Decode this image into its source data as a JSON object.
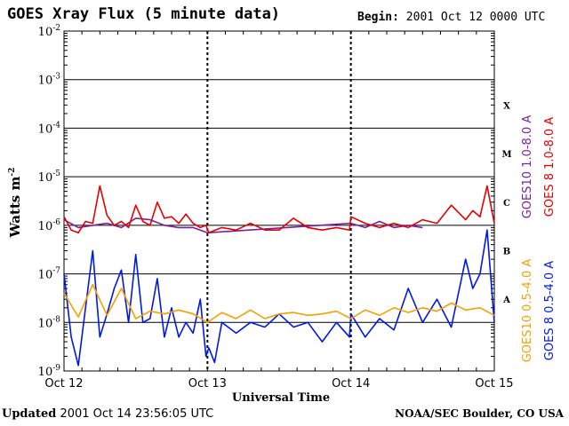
{
  "header": {
    "title": "GOES Xray Flux (5 minute data)",
    "begin_label": "Begin:",
    "begin_value": "2001 Oct 12 0000 UTC"
  },
  "footer": {
    "updated_label": "Updated",
    "updated_value": "2001 Oct 14 23:56:05 UTC",
    "credit": "NOAA/SEC Boulder, CO USA"
  },
  "colors": {
    "goes10_long": "#7a1fa0",
    "goes8_long": "#e60000",
    "goes10_short": "#f5a000",
    "goes8_short": "#0018e6"
  },
  "chart_data": {
    "type": "line",
    "title": "GOES Xray Flux (5 minute data)",
    "xlabel": "Universal Time",
    "ylabel": "Watts m-2",
    "x_ticks": [
      "Oct 12",
      "Oct 13",
      "Oct 14",
      "Oct 15"
    ],
    "xlim": [
      0,
      3
    ],
    "y_scale": "log",
    "ylim": [
      1e-09,
      0.01
    ],
    "y_ticks": [
      {
        "base": "10",
        "exp": "-2",
        "value": 0.01
      },
      {
        "base": "10",
        "exp": "-3",
        "value": 0.001
      },
      {
        "base": "10",
        "exp": "-4",
        "value": 0.0001
      },
      {
        "base": "10",
        "exp": "-5",
        "value": 1e-05
      },
      {
        "base": "10",
        "exp": "-6",
        "value": 1e-06
      },
      {
        "base": "10",
        "exp": "-7",
        "value": 1e-07
      },
      {
        "base": "10",
        "exp": "-8",
        "value": 1e-08
      },
      {
        "base": "10",
        "exp": "-9",
        "value": 1e-09
      }
    ],
    "flare_classes": [
      {
        "label": "X",
        "value": 0.0003
      },
      {
        "label": "M",
        "value": 3e-05
      },
      {
        "label": "C",
        "value": 3e-06
      },
      {
        "label": "B",
        "value": 3e-07
      },
      {
        "label": "A",
        "value": 3e-08
      }
    ],
    "grid": "horizontal lines at each decade",
    "series": [
      {
        "name": "GOES10 1.0-8.0 A",
        "color": "#7a1fa0",
        "x": [
          0,
          0.1,
          0.2,
          0.3,
          0.4,
          0.5,
          0.6,
          0.7,
          0.8,
          0.9,
          1.0,
          2.0,
          2.1,
          2.2,
          2.3,
          2.4,
          2.5
        ],
        "y": [
          1.3e-06,
          9e-07,
          1e-06,
          1.1e-06,
          9e-07,
          1.4e-06,
          1.3e-06,
          1e-06,
          9e-07,
          9e-07,
          7e-07,
          1.1e-06,
          9e-07,
          1.2e-06,
          9e-07,
          1e-06,
          9e-07
        ]
      },
      {
        "name": "GOES 8 1.0-8.0 A",
        "color": "#e60000",
        "x": [
          0,
          0.05,
          0.1,
          0.15,
          0.2,
          0.25,
          0.3,
          0.35,
          0.4,
          0.45,
          0.5,
          0.55,
          0.6,
          0.65,
          0.7,
          0.75,
          0.8,
          0.85,
          0.9,
          0.95,
          0.99,
          1.01,
          1.1,
          1.2,
          1.3,
          1.4,
          1.5,
          1.6,
          1.7,
          1.8,
          1.9,
          1.99,
          2.0,
          2.1,
          2.2,
          2.3,
          2.4,
          2.5,
          2.6,
          2.7,
          2.8,
          2.85,
          2.9,
          2.95,
          3.0
        ],
        "y": [
          1.5e-06,
          8e-07,
          7e-07,
          1.2e-06,
          1.1e-06,
          6.5e-06,
          1.6e-06,
          1e-06,
          1.2e-06,
          9e-07,
          2.6e-06,
          1.2e-06,
          1e-06,
          3e-06,
          1.4e-06,
          1.5e-06,
          1.1e-06,
          1.7e-06,
          1.1e-06,
          9e-07,
          1e-06,
          7e-07,
          9e-07,
          8e-07,
          1.1e-06,
          8e-07,
          8e-07,
          1.4e-06,
          9e-07,
          8e-07,
          9e-07,
          8e-07,
          1.5e-06,
          1.1e-06,
          9e-07,
          1.1e-06,
          9e-07,
          1.3e-06,
          1.1e-06,
          2.6e-06,
          1.3e-06,
          2e-06,
          1.5e-06,
          6.5e-06,
          1.1e-06
        ]
      },
      {
        "name": "GOES10 0.5-4.0 A",
        "color": "#f5a000",
        "x": [
          0,
          0.1,
          0.2,
          0.3,
          0.4,
          0.5,
          0.6,
          0.7,
          0.8,
          0.9,
          1.0,
          1.1,
          1.2,
          1.3,
          1.4,
          1.5,
          1.6,
          1.7,
          1.8,
          1.9,
          2.0,
          2.1,
          2.2,
          2.3,
          2.4,
          2.5,
          2.6,
          2.7,
          2.8,
          2.9,
          3.0
        ],
        "y": [
          4e-08,
          1.3e-08,
          6e-08,
          1.4e-08,
          5e-08,
          1.2e-08,
          1.7e-08,
          1.5e-08,
          1.8e-08,
          1.5e-08,
          1e-08,
          1.6e-08,
          1.2e-08,
          1.8e-08,
          1.2e-08,
          1.5e-08,
          1.6e-08,
          1.4e-08,
          1.5e-08,
          1.7e-08,
          1.2e-08,
          1.8e-08,
          1.4e-08,
          2e-08,
          1.6e-08,
          2e-08,
          1.7e-08,
          2.5e-08,
          1.8e-08,
          2e-08,
          1.4e-08
        ]
      },
      {
        "name": "GOES 8 0.5-4.0 A",
        "color": "#0018e6",
        "x": [
          0,
          0.05,
          0.1,
          0.15,
          0.2,
          0.25,
          0.3,
          0.35,
          0.4,
          0.45,
          0.5,
          0.55,
          0.6,
          0.65,
          0.7,
          0.75,
          0.8,
          0.85,
          0.9,
          0.95,
          0.99,
          1.01,
          1.05,
          1.1,
          1.2,
          1.3,
          1.4,
          1.5,
          1.6,
          1.7,
          1.8,
          1.9,
          1.99,
          2.0,
          2.1,
          2.2,
          2.3,
          2.4,
          2.5,
          2.6,
          2.7,
          2.8,
          2.85,
          2.9,
          2.95,
          3.0
        ],
        "y": [
          1e-07,
          5e-09,
          1.3e-09,
          2e-08,
          3e-07,
          5e-09,
          1.5e-08,
          5e-08,
          1.2e-07,
          1e-08,
          2.5e-07,
          1e-08,
          1.2e-08,
          8e-08,
          5e-09,
          2e-08,
          5e-09,
          1e-08,
          6e-09,
          3e-08,
          2e-09,
          3e-09,
          1.5e-09,
          1e-08,
          6e-09,
          1e-08,
          8e-09,
          1.5e-08,
          8e-09,
          1e-08,
          4e-09,
          1e-08,
          5e-09,
          1.5e-08,
          5e-09,
          1.2e-08,
          7e-09,
          5e-08,
          1e-08,
          3e-08,
          8e-09,
          2e-07,
          5e-08,
          1e-07,
          8e-07,
          1e-08
        ]
      }
    ]
  }
}
